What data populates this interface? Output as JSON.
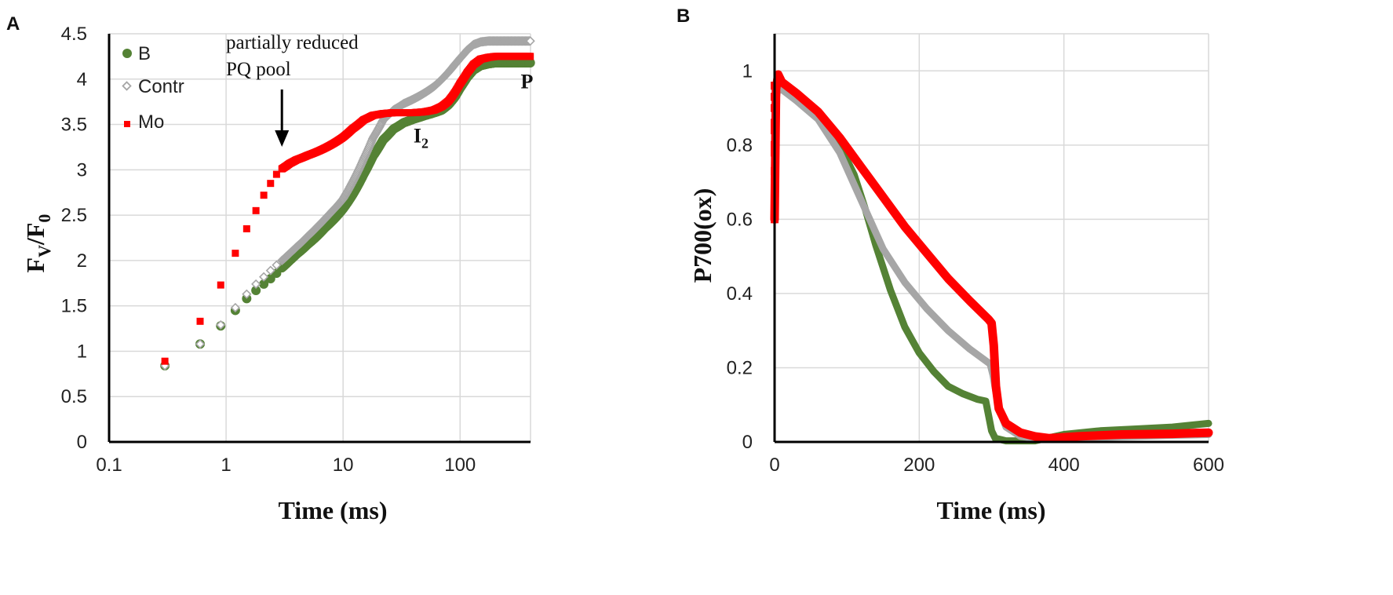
{
  "chart_data": [
    {
      "panel": "A",
      "type": "scatter",
      "xscale": "log",
      "xlabel": "Time (ms)",
      "ylabel_main": "F",
      "ylabel_sub1": "V",
      "ylabel_slash": "/F",
      "ylabel_sub2": "0",
      "xlim": [
        0.1,
        400
      ],
      "ylim": [
        0,
        4.5
      ],
      "x_ticks": [
        0.1,
        1,
        10,
        100
      ],
      "x_tick_labels": [
        "0.1",
        "1",
        "10",
        "100"
      ],
      "y_ticks": [
        0,
        0.5,
        1,
        1.5,
        2,
        2.5,
        3,
        3.5,
        4,
        4.5
      ],
      "y_tick_labels": [
        "0",
        "0.5",
        "1",
        "1.5",
        "2",
        "2.5",
        "3",
        "3.5",
        "4",
        "4.5"
      ],
      "grid": true,
      "legend": [
        {
          "label": "B",
          "color": "#548235",
          "marker": "circle"
        },
        {
          "label": "Contr",
          "color": "#a6a6a6",
          "marker": "diamond"
        },
        {
          "label": "Mo",
          "color": "#ff0000",
          "marker": "square"
        }
      ],
      "annotations": {
        "arrow_line1": "partially reduced",
        "arrow_line2": "PQ pool",
        "arrow_x": 3,
        "i2_main": "I",
        "i2_sub": "2",
        "i2_x": 40,
        "i2_y": 3.3,
        "p_label": "P",
        "p_x": 330,
        "p_y": 3.9
      },
      "series": [
        {
          "name": "B",
          "color": "#548235",
          "marker": "circle",
          "points": [
            [
              0.3,
              0.84
            ],
            [
              0.6,
              1.08
            ],
            [
              0.9,
              1.28
            ],
            [
              1.2,
              1.45
            ],
            [
              1.5,
              1.58
            ],
            [
              1.8,
              1.67
            ],
            [
              2.1,
              1.74
            ],
            [
              2.4,
              1.8
            ],
            [
              2.7,
              1.86
            ],
            [
              3,
              1.92
            ],
            [
              3.5,
              2.0
            ],
            [
              4,
              2.07
            ],
            [
              5,
              2.18
            ],
            [
              6,
              2.27
            ],
            [
              7,
              2.36
            ],
            [
              8,
              2.43
            ],
            [
              9,
              2.5
            ],
            [
              10,
              2.57
            ],
            [
              12,
              2.72
            ],
            [
              15,
              2.95
            ],
            [
              18,
              3.15
            ],
            [
              22,
              3.33
            ],
            [
              27,
              3.45
            ],
            [
              33,
              3.52
            ],
            [
              40,
              3.56
            ],
            [
              50,
              3.6
            ],
            [
              60,
              3.63
            ],
            [
              70,
              3.66
            ],
            [
              80,
              3.72
            ],
            [
              90,
              3.8
            ],
            [
              100,
              3.9
            ],
            [
              115,
              4.02
            ],
            [
              130,
              4.1
            ],
            [
              150,
              4.15
            ],
            [
              175,
              4.17
            ],
            [
              200,
              4.18
            ],
            [
              250,
              4.18
            ],
            [
              300,
              4.18
            ],
            [
              350,
              4.18
            ],
            [
              400,
              4.18
            ]
          ]
        },
        {
          "name": "Contr",
          "color": "#a6a6a6",
          "marker": "diamond",
          "points": [
            [
              0.3,
              0.84
            ],
            [
              0.6,
              1.08
            ],
            [
              0.9,
              1.29
            ],
            [
              1.2,
              1.48
            ],
            [
              1.5,
              1.63
            ],
            [
              1.8,
              1.74
            ],
            [
              2.1,
              1.82
            ],
            [
              2.4,
              1.89
            ],
            [
              2.7,
              1.95
            ],
            [
              3,
              2.0
            ],
            [
              3.5,
              2.08
            ],
            [
              4,
              2.15
            ],
            [
              5,
              2.27
            ],
            [
              6,
              2.37
            ],
            [
              7,
              2.46
            ],
            [
              8,
              2.54
            ],
            [
              9,
              2.61
            ],
            [
              10,
              2.68
            ],
            [
              12,
              2.86
            ],
            [
              15,
              3.12
            ],
            [
              18,
              3.35
            ],
            [
              22,
              3.55
            ],
            [
              27,
              3.66
            ],
            [
              33,
              3.73
            ],
            [
              40,
              3.78
            ],
            [
              50,
              3.85
            ],
            [
              60,
              3.92
            ],
            [
              70,
              4.0
            ],
            [
              80,
              4.08
            ],
            [
              90,
              4.16
            ],
            [
              100,
              4.23
            ],
            [
              115,
              4.32
            ],
            [
              130,
              4.38
            ],
            [
              150,
              4.41
            ],
            [
              175,
              4.42
            ],
            [
              200,
              4.42
            ],
            [
              250,
              4.42
            ],
            [
              300,
              4.42
            ],
            [
              350,
              4.42
            ],
            [
              400,
              4.42
            ]
          ]
        },
        {
          "name": "Mo",
          "color": "#ff0000",
          "marker": "square",
          "points": [
            [
              0.3,
              0.89
            ],
            [
              0.6,
              1.33
            ],
            [
              0.9,
              1.73
            ],
            [
              1.2,
              2.08
            ],
            [
              1.5,
              2.35
            ],
            [
              1.8,
              2.55
            ],
            [
              2.1,
              2.72
            ],
            [
              2.4,
              2.85
            ],
            [
              2.7,
              2.95
            ],
            [
              3,
              3.01
            ],
            [
              3.5,
              3.07
            ],
            [
              4,
              3.11
            ],
            [
              5,
              3.16
            ],
            [
              6,
              3.2
            ],
            [
              7,
              3.24
            ],
            [
              8,
              3.28
            ],
            [
              9,
              3.32
            ],
            [
              10,
              3.36
            ],
            [
              12,
              3.45
            ],
            [
              15,
              3.55
            ],
            [
              18,
              3.6
            ],
            [
              22,
              3.62
            ],
            [
              27,
              3.63
            ],
            [
              33,
              3.63
            ],
            [
              40,
              3.63
            ],
            [
              50,
              3.64
            ],
            [
              60,
              3.66
            ],
            [
              70,
              3.7
            ],
            [
              80,
              3.76
            ],
            [
              90,
              3.85
            ],
            [
              100,
              3.95
            ],
            [
              115,
              4.07
            ],
            [
              130,
              4.16
            ],
            [
              150,
              4.22
            ],
            [
              175,
              4.24
            ],
            [
              200,
              4.25
            ],
            [
              250,
              4.25
            ],
            [
              300,
              4.25
            ],
            [
              350,
              4.25
            ],
            [
              400,
              4.25
            ]
          ]
        }
      ]
    },
    {
      "panel": "B",
      "type": "line",
      "xlabel": "Time (ms)",
      "ylabel": "P700(ox)",
      "xlim": [
        0,
        600
      ],
      "ylim": [
        0,
        1.1
      ],
      "x_ticks": [
        0,
        200,
        400,
        600
      ],
      "x_tick_labels": [
        "0",
        "200",
        "400",
        "600"
      ],
      "y_ticks": [
        0,
        0.2,
        0.4,
        0.6,
        0.8,
        1
      ],
      "y_tick_labels": [
        "0",
        "0.2",
        "0.4",
        "0.6",
        "0.8",
        "1"
      ],
      "grid": true,
      "series": [
        {
          "name": "B",
          "color": "#548235",
          "points": [
            [
              0,
              0.8
            ],
            [
              2,
              0.95
            ],
            [
              5,
              0.98
            ],
            [
              10,
              0.95
            ],
            [
              30,
              0.93
            ],
            [
              60,
              0.89
            ],
            [
              90,
              0.8
            ],
            [
              110,
              0.72
            ],
            [
              125,
              0.63
            ],
            [
              140,
              0.53
            ],
            [
              160,
              0.41
            ],
            [
              180,
              0.31
            ],
            [
              200,
              0.24
            ],
            [
              220,
              0.19
            ],
            [
              240,
              0.15
            ],
            [
              260,
              0.13
            ],
            [
              280,
              0.115
            ],
            [
              292,
              0.11
            ],
            [
              296,
              0.07
            ],
            [
              300,
              0.03
            ],
            [
              305,
              0.01
            ],
            [
              320,
              0.003
            ],
            [
              360,
              0.003
            ],
            [
              400,
              0.02
            ],
            [
              450,
              0.03
            ],
            [
              500,
              0.035
            ],
            [
              550,
              0.04
            ],
            [
              600,
              0.05
            ]
          ]
        },
        {
          "name": "Contr",
          "color": "#a6a6a6",
          "points": [
            [
              0,
              0.7
            ],
            [
              2,
              0.92
            ],
            [
              5,
              0.96
            ],
            [
              10,
              0.95
            ],
            [
              30,
              0.92
            ],
            [
              60,
              0.87
            ],
            [
              90,
              0.78
            ],
            [
              120,
              0.65
            ],
            [
              150,
              0.52
            ],
            [
              180,
              0.43
            ],
            [
              210,
              0.36
            ],
            [
              240,
              0.3
            ],
            [
              270,
              0.25
            ],
            [
              298,
              0.21
            ],
            [
              302,
              0.18
            ],
            [
              310,
              0.09
            ],
            [
              320,
              0.04
            ],
            [
              340,
              0.015
            ],
            [
              360,
              0.01
            ],
            [
              400,
              0.01
            ],
            [
              450,
              0.012
            ],
            [
              500,
              0.015
            ],
            [
              550,
              0.018
            ],
            [
              600,
              0.02
            ]
          ]
        },
        {
          "name": "Mo",
          "color": "#ff0000",
          "points": [
            [
              0,
              0.6
            ],
            [
              2,
              0.95
            ],
            [
              5,
              0.99
            ],
            [
              10,
              0.97
            ],
            [
              30,
              0.94
            ],
            [
              60,
              0.89
            ],
            [
              90,
              0.82
            ],
            [
              120,
              0.74
            ],
            [
              150,
              0.66
            ],
            [
              180,
              0.58
            ],
            [
              210,
              0.51
            ],
            [
              240,
              0.44
            ],
            [
              270,
              0.38
            ],
            [
              296,
              0.33
            ],
            [
              300,
              0.32
            ],
            [
              303,
              0.26
            ],
            [
              306,
              0.15
            ],
            [
              310,
              0.09
            ],
            [
              320,
              0.05
            ],
            [
              340,
              0.025
            ],
            [
              360,
              0.015
            ],
            [
              380,
              0.01
            ],
            [
              420,
              0.015
            ],
            [
              480,
              0.02
            ],
            [
              550,
              0.022
            ],
            [
              600,
              0.025
            ]
          ]
        }
      ]
    }
  ]
}
